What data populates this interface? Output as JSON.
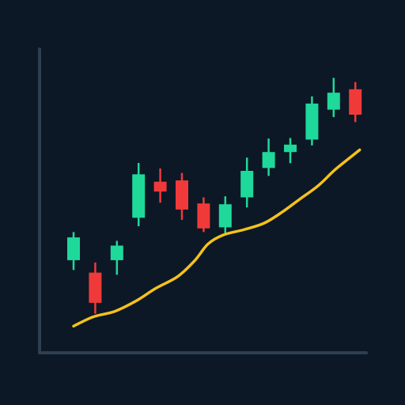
{
  "colors": {
    "background": "#0c1826",
    "axis": "#2f3f4f",
    "up": "#1ed99a",
    "down": "#f03a3a",
    "trend": "#f5c21b"
  },
  "chart_data": {
    "type": "candlestick",
    "title": "",
    "xlabel": "",
    "ylabel": "",
    "grid": false,
    "legend": "none",
    "ylim": [
      0,
      100
    ],
    "candles": [
      {
        "open": 25.7,
        "close": 34.3,
        "high": 36.3,
        "low": 22.0
      },
      {
        "open": 21.0,
        "close": 9.6,
        "high": 24.8,
        "low": 5.5
      },
      {
        "open": 25.7,
        "close": 31.2,
        "high": 33.0,
        "low": 20.2
      },
      {
        "open": 41.7,
        "close": 58.1,
        "high": 62.4,
        "low": 38.5
      },
      {
        "open": 55.3,
        "close": 51.6,
        "high": 60.3,
        "low": 47.4
      },
      {
        "open": 55.8,
        "close": 44.8,
        "high": 58.6,
        "low": 40.9
      },
      {
        "open": 47.1,
        "close": 37.7,
        "high": 49.4,
        "low": 36.3
      },
      {
        "open": 38.1,
        "close": 46.8,
        "high": 49.8,
        "low": 35.1
      },
      {
        "open": 49.4,
        "close": 59.4,
        "high": 64.4,
        "low": 45.6
      },
      {
        "open": 60.5,
        "close": 66.5,
        "high": 71.6,
        "low": 57.5
      },
      {
        "open": 66.5,
        "close": 69.3,
        "high": 71.8,
        "low": 62.3
      },
      {
        "open": 71.2,
        "close": 84.8,
        "high": 87.5,
        "low": 69.0
      },
      {
        "open": 82.5,
        "close": 88.9,
        "high": 94.5,
        "low": 79.7
      },
      {
        "open": 90.2,
        "close": 80.6,
        "high": 92.9,
        "low": 77.8
      }
    ],
    "trend_line": {
      "x": [
        0.0,
        0.9,
        1.9,
        2.9,
        3.8,
        4.8,
        5.6,
        6.2,
        6.9,
        7.9,
        8.8,
        9.6,
        10.4,
        11.3,
        12.1,
        13.2
      ],
      "y": [
        0.8,
        4.3,
        6.4,
        10.4,
        15.1,
        19.5,
        25.6,
        31.8,
        35.2,
        37.3,
        39.7,
        43.7,
        48.5,
        53.9,
        60.1,
        67.3
      ]
    }
  }
}
